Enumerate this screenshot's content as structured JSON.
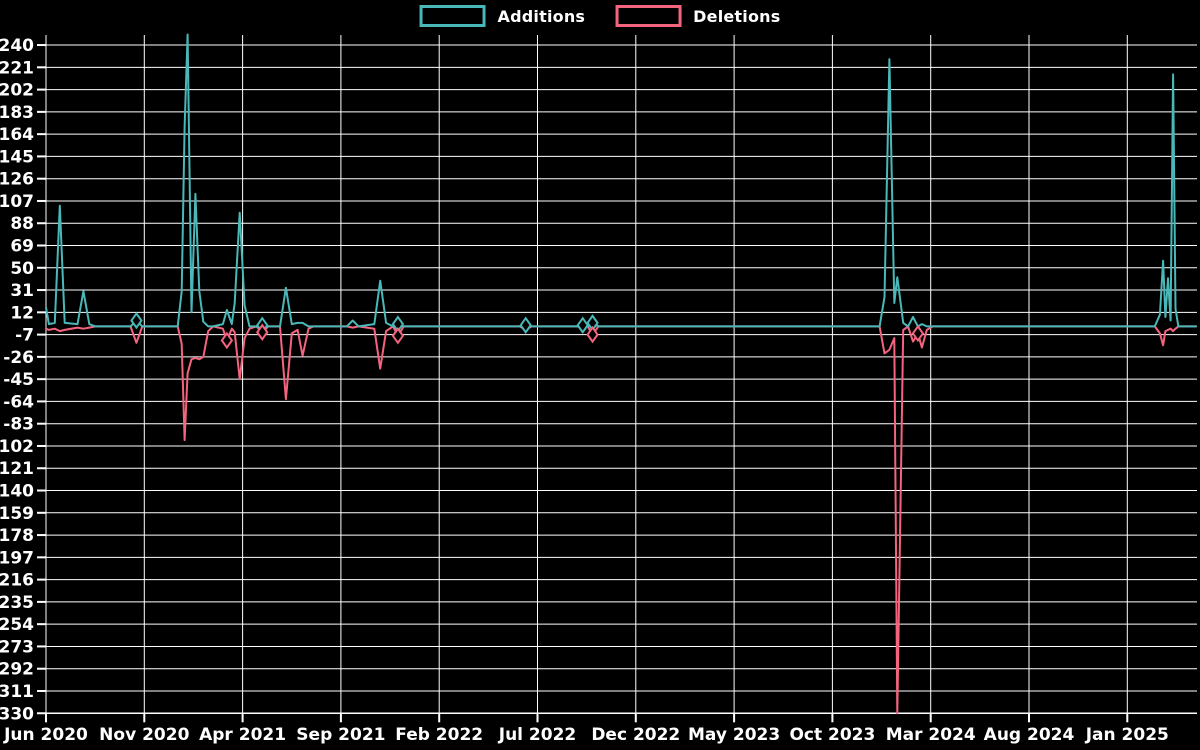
{
  "legend": {
    "items": [
      {
        "label": "Additions",
        "color": "#4ab8b8"
      },
      {
        "label": "Deletions",
        "color": "#f4647e"
      }
    ]
  },
  "chart_data": {
    "type": "line",
    "title": "",
    "xlabel": "",
    "ylabel": "",
    "x_unit": "months since Jun 2020 (weekly commit additions/deletions over time)",
    "x_tick_labels": [
      "Jun 2020",
      "Nov 2020",
      "Apr 2021",
      "Sep 2021",
      "Feb 2022",
      "Jul 2022",
      "Dec 2022",
      "May 2023",
      "Oct 2023",
      "Mar 2024",
      "Aug 2024",
      "Jan 2025"
    ],
    "x_tick_positions_months": [
      0,
      5,
      10,
      15,
      20,
      25,
      30,
      35,
      40,
      45,
      50,
      55
    ],
    "xlim_months": [
      0,
      58.5
    ],
    "y_ticks": [
      240,
      221,
      202,
      183,
      164,
      145,
      126,
      107,
      88,
      69,
      50,
      31,
      12,
      -7,
      -26,
      -45,
      -64,
      -83,
      -102,
      -121,
      -140,
      -159,
      -178,
      -197,
      -216,
      -235,
      -254,
      -273,
      -292,
      -311,
      -330
    ],
    "ylim": [
      -330,
      249
    ],
    "grid": true,
    "legend_position": "top-center",
    "background_color": "#000000",
    "grid_color": "#ffffff",
    "text_color": "#ffffff",
    "series": [
      {
        "name": "Additions",
        "color": "#4ab8b8",
        "points": [
          [
            0,
            16
          ],
          [
            0.15,
            2
          ],
          [
            0.45,
            3
          ],
          [
            0.7,
            103
          ],
          [
            0.95,
            3
          ],
          [
            1.6,
            2
          ],
          [
            1.9,
            30
          ],
          [
            2.2,
            2
          ],
          [
            2.5,
            0
          ],
          [
            4.3,
            0
          ],
          [
            4.6,
            5
          ],
          [
            4.9,
            0
          ],
          [
            6.7,
            0
          ],
          [
            6.9,
            30
          ],
          [
            7.05,
            170
          ],
          [
            7.2,
            249
          ],
          [
            7.4,
            12
          ],
          [
            7.6,
            113
          ],
          [
            7.8,
            30
          ],
          [
            8.0,
            4
          ],
          [
            8.25,
            0
          ],
          [
            8.5,
            0
          ],
          [
            9.0,
            2
          ],
          [
            9.2,
            14
          ],
          [
            9.45,
            2
          ],
          [
            9.6,
            20
          ],
          [
            9.85,
            97
          ],
          [
            10.1,
            18
          ],
          [
            10.35,
            0
          ],
          [
            10.7,
            0
          ],
          [
            11.0,
            1
          ],
          [
            11.3,
            0
          ],
          [
            11.9,
            0
          ],
          [
            12.2,
            33
          ],
          [
            12.5,
            2
          ],
          [
            12.8,
            3
          ],
          [
            13.05,
            3
          ],
          [
            13.35,
            0
          ],
          [
            13.6,
            0
          ],
          [
            15.3,
            0
          ],
          [
            15.6,
            5
          ],
          [
            15.9,
            0
          ],
          [
            16.7,
            2
          ],
          [
            17.0,
            39
          ],
          [
            17.3,
            3
          ],
          [
            17.65,
            0
          ],
          [
            17.9,
            2
          ],
          [
            18.2,
            0
          ],
          [
            24.1,
            0
          ],
          [
            24.4,
            1
          ],
          [
            24.7,
            0
          ],
          [
            27.0,
            0
          ],
          [
            27.3,
            1
          ],
          [
            27.55,
            0
          ],
          [
            27.8,
            3
          ],
          [
            28.1,
            0
          ],
          [
            42.4,
            0
          ],
          [
            42.65,
            25
          ],
          [
            42.9,
            228
          ],
          [
            43.15,
            20
          ],
          [
            43.3,
            42
          ],
          [
            43.6,
            3
          ],
          [
            43.85,
            0
          ],
          [
            44.1,
            8
          ],
          [
            44.35,
            0
          ],
          [
            44.55,
            2
          ],
          [
            44.8,
            0
          ],
          [
            45.1,
            0
          ],
          [
            56.4,
            0
          ],
          [
            56.66,
            10
          ],
          [
            56.82,
            56
          ],
          [
            56.94,
            8
          ],
          [
            57.07,
            41
          ],
          [
            57.2,
            5
          ],
          [
            57.33,
            215
          ],
          [
            57.45,
            15
          ],
          [
            57.6,
            0
          ],
          [
            58.5,
            0
          ]
        ]
      },
      {
        "name": "Deletions",
        "color": "#f4647e",
        "points": [
          [
            0,
            -2
          ],
          [
            0.15,
            -3
          ],
          [
            0.45,
            -2
          ],
          [
            0.7,
            -4
          ],
          [
            0.95,
            -3
          ],
          [
            1.6,
            -1
          ],
          [
            1.9,
            -2
          ],
          [
            2.2,
            -1
          ],
          [
            2.5,
            0
          ],
          [
            4.3,
            0
          ],
          [
            4.6,
            -14
          ],
          [
            4.9,
            0
          ],
          [
            6.7,
            0
          ],
          [
            6.9,
            -15
          ],
          [
            7.05,
            -97
          ],
          [
            7.2,
            -40
          ],
          [
            7.4,
            -28
          ],
          [
            7.6,
            -27
          ],
          [
            7.8,
            -28
          ],
          [
            8.0,
            -26
          ],
          [
            8.25,
            -4
          ],
          [
            8.5,
            0
          ],
          [
            9.0,
            -2
          ],
          [
            9.2,
            -12
          ],
          [
            9.45,
            -2
          ],
          [
            9.6,
            -5
          ],
          [
            9.85,
            -45
          ],
          [
            10.1,
            -10
          ],
          [
            10.35,
            -2
          ],
          [
            10.7,
            0
          ],
          [
            11.0,
            -5
          ],
          [
            11.3,
            0
          ],
          [
            11.9,
            0
          ],
          [
            12.2,
            -62
          ],
          [
            12.5,
            -6
          ],
          [
            12.8,
            -3
          ],
          [
            13.05,
            -25
          ],
          [
            13.35,
            -2
          ],
          [
            13.6,
            0
          ],
          [
            15.3,
            0
          ],
          [
            15.6,
            -1
          ],
          [
            15.9,
            0
          ],
          [
            16.7,
            -2
          ],
          [
            17.0,
            -36
          ],
          [
            17.3,
            -4
          ],
          [
            17.65,
            0
          ],
          [
            17.9,
            -8
          ],
          [
            18.2,
            0
          ],
          [
            24.1,
            0
          ],
          [
            24.4,
            -3
          ],
          [
            24.7,
            0
          ],
          [
            27.0,
            0
          ],
          [
            27.3,
            -1
          ],
          [
            27.55,
            0
          ],
          [
            27.8,
            -7
          ],
          [
            28.1,
            0
          ],
          [
            42.4,
            0
          ],
          [
            42.65,
            -23
          ],
          [
            42.9,
            -20
          ],
          [
            43.15,
            -10
          ],
          [
            43.3,
            -330
          ],
          [
            43.6,
            -3
          ],
          [
            43.85,
            0
          ],
          [
            44.1,
            -13
          ],
          [
            44.35,
            -6
          ],
          [
            44.55,
            -18
          ],
          [
            44.8,
            -3
          ],
          [
            45.1,
            0
          ],
          [
            56.4,
            0
          ],
          [
            56.66,
            -6
          ],
          [
            56.82,
            -16
          ],
          [
            56.94,
            -4
          ],
          [
            57.07,
            -3
          ],
          [
            57.2,
            -2
          ],
          [
            57.33,
            -4
          ],
          [
            57.45,
            -2
          ],
          [
            57.6,
            0
          ],
          [
            58.5,
            0
          ]
        ]
      }
    ],
    "markers": [
      {
        "series": 0,
        "x": 4.6,
        "y": 5
      },
      {
        "series": 0,
        "x": 11.0,
        "y": 1
      },
      {
        "series": 0,
        "x": 17.9,
        "y": 2
      },
      {
        "series": 0,
        "x": 24.4,
        "y": 1
      },
      {
        "series": 0,
        "x": 27.3,
        "y": 1
      },
      {
        "series": 0,
        "x": 27.8,
        "y": 3
      },
      {
        "series": 1,
        "x": 9.2,
        "y": -12
      },
      {
        "series": 1,
        "x": 11.0,
        "y": -5
      },
      {
        "series": 1,
        "x": 17.9,
        "y": -8
      },
      {
        "series": 1,
        "x": 27.8,
        "y": -7
      },
      {
        "series": 1,
        "x": 44.35,
        "y": -6
      }
    ]
  }
}
